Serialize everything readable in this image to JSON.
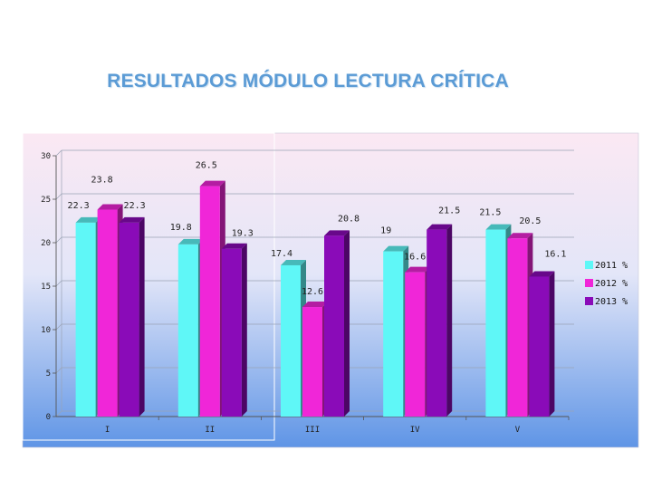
{
  "title": "RESULTADOS MÓDULO LECTURA CRÍTICA",
  "colors": {
    "series_2011": "#5ff7f7",
    "series_2012": "#f026d8",
    "series_2013": "#8a0bb8",
    "background_top": "#fbe8f3",
    "background_bottom": "#5f95e6"
  },
  "chart_data": {
    "type": "bar",
    "categories": [
      "I",
      "II",
      "III",
      "IV",
      "V"
    ],
    "series": [
      {
        "name": "2011 %",
        "values": [
          22.3,
          19.8,
          17.4,
          19,
          21.5
        ]
      },
      {
        "name": "2012 %",
        "values": [
          23.8,
          26.5,
          12.6,
          16.6,
          20.5
        ]
      },
      {
        "name": "2013 %",
        "values": [
          22.3,
          19.3,
          20.8,
          21.5,
          16.1
        ]
      }
    ],
    "data_labels": [
      [
        "22.3",
        "19.8",
        "17.4",
        "19",
        "21.5"
      ],
      [
        "23.8",
        "26.5",
        "12.6",
        "16.6",
        "20.5"
      ],
      [
        "22.3",
        "19.3",
        "20.8",
        "21.5",
        "16.1"
      ]
    ],
    "y_ticks": [
      "0",
      "5",
      "10",
      "15",
      "20",
      "25",
      "30"
    ],
    "ylim": [
      0,
      30
    ],
    "legend_position": "right",
    "grid": true,
    "style": "3d-clustered-bar"
  }
}
